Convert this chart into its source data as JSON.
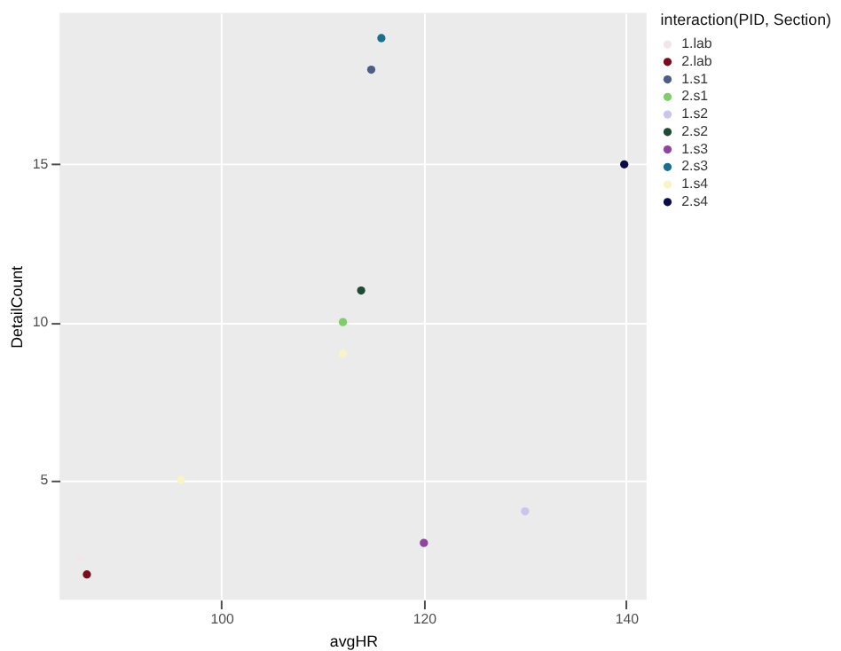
{
  "chart_data": {
    "type": "scatter",
    "xlabel": "avgHR",
    "ylabel": "DetailCount",
    "legend_title": "interaction(PID, Section)",
    "xlim": [
      84,
      142
    ],
    "ylim": [
      1.2,
      19.8
    ],
    "xticks": [
      100,
      120,
      140
    ],
    "yticks": [
      5,
      10,
      15
    ],
    "grid": true,
    "legend": "right",
    "marker": "circle",
    "series": [
      {
        "name": "1.lab",
        "color": "#f3e6ea",
        "x": [
          86
        ],
        "values": [
          2.5
        ]
      },
      {
        "name": "2.lab",
        "color": "#7a0d1c",
        "x": [
          86.7
        ],
        "values": [
          2
        ]
      },
      {
        "name": "1.s1",
        "color": "#4b5f86",
        "x": [
          114.8
        ],
        "values": [
          18
        ]
      },
      {
        "name": "2.s1",
        "color": "#7fce6a",
        "x": [
          112
        ],
        "values": [
          10
        ]
      },
      {
        "name": "1.s2",
        "color": "#c9c6ec",
        "x": [
          130
        ],
        "values": [
          4
        ]
      },
      {
        "name": "2.s2",
        "color": "#1f4a35",
        "x": [
          113.8
        ],
        "values": [
          11
        ]
      },
      {
        "name": "1.s3",
        "color": "#8e44a0",
        "x": [
          120
        ],
        "values": [
          3
        ]
      },
      {
        "name": "2.s3",
        "color": "#1a6f8e",
        "x": [
          115.8
        ],
        "values": [
          19
        ]
      },
      {
        "name": "1.s4",
        "color": "#f8f4c8",
        "x": [
          112,
          96
        ],
        "values": [
          9,
          5
        ]
      },
      {
        "name": "2.s4",
        "color": "#0b0b4a",
        "x": [
          139.8
        ],
        "values": [
          15
        ]
      }
    ]
  }
}
